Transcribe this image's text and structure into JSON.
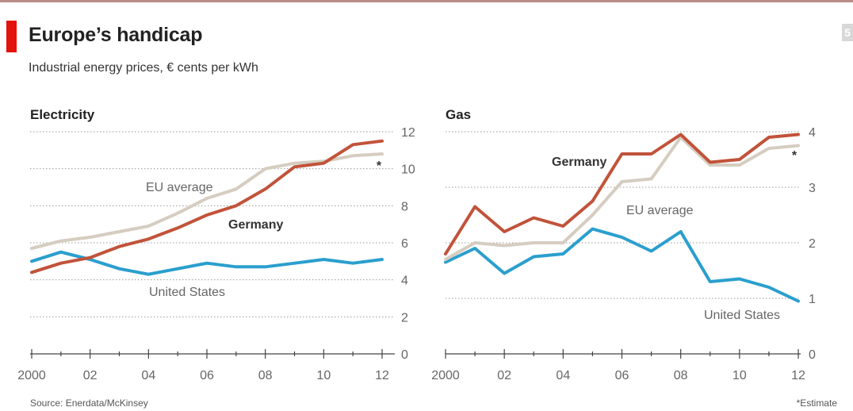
{
  "title": "Europe’s handicap",
  "subtitle": "Industrial energy prices, € cents per kWh",
  "page_number": "5",
  "source": "Source: Enerdata/McKinsey",
  "footnote": "*Estimate",
  "colors": {
    "accent_tag": "#e3120b",
    "germany": "#c1533a",
    "eu_average": "#d5cdc0",
    "united_states": "#2a9fce"
  },
  "chart_data": [
    {
      "type": "line",
      "title": "Electricity",
      "x": [
        2000,
        2001,
        2002,
        2003,
        2004,
        2005,
        2006,
        2007,
        2008,
        2009,
        2010,
        2011,
        2012
      ],
      "x_ticks": [
        2000,
        2002,
        2004,
        2006,
        2008,
        2010,
        2012
      ],
      "x_tick_labels": [
        "2000",
        "02",
        "04",
        "06",
        "08",
        "10",
        "12"
      ],
      "y_ticks": [
        0,
        2,
        4,
        6,
        8,
        10,
        12
      ],
      "y_tick_labels": [
        "0",
        "2",
        "4",
        "6",
        "8",
        "10",
        "12"
      ],
      "ylim": [
        0,
        12
      ],
      "estimate_marker": "*",
      "series": [
        {
          "name": "Germany",
          "values": [
            4.4,
            4.9,
            5.2,
            5.8,
            6.2,
            6.8,
            7.5,
            8.0,
            8.9,
            10.1,
            10.3,
            11.3,
            11.5
          ]
        },
        {
          "name": "EU average",
          "values": [
            5.7,
            6.1,
            6.3,
            6.6,
            6.9,
            7.6,
            8.4,
            8.9,
            10.0,
            10.3,
            10.4,
            10.7,
            10.8
          ]
        },
        {
          "name": "United States",
          "values": [
            5.0,
            5.5,
            5.1,
            4.6,
            4.3,
            4.6,
            4.9,
            4.7,
            4.7,
            4.9,
            5.1,
            4.9,
            5.1
          ]
        }
      ]
    },
    {
      "type": "line",
      "title": "Gas",
      "x": [
        2000,
        2001,
        2002,
        2003,
        2004,
        2005,
        2006,
        2007,
        2008,
        2009,
        2010,
        2011,
        2012
      ],
      "x_ticks": [
        2000,
        2002,
        2004,
        2006,
        2008,
        2010,
        2012
      ],
      "x_tick_labels": [
        "2000",
        "02",
        "04",
        "06",
        "08",
        "10",
        "12"
      ],
      "y_ticks": [
        0,
        1,
        2,
        3,
        4
      ],
      "y_tick_labels": [
        "0",
        "1",
        "2",
        "3",
        "4"
      ],
      "ylim": [
        0,
        4
      ],
      "estimate_marker": "*",
      "series": [
        {
          "name": "Germany",
          "values": [
            1.8,
            2.65,
            2.2,
            2.45,
            2.3,
            2.75,
            3.6,
            3.6,
            3.95,
            3.45,
            3.5,
            3.9,
            3.95
          ]
        },
        {
          "name": "EU average",
          "values": [
            1.7,
            2.0,
            1.95,
            2.0,
            2.0,
            2.5,
            3.1,
            3.15,
            3.9,
            3.4,
            3.4,
            3.7,
            3.75
          ]
        },
        {
          "name": "United States",
          "values": [
            1.65,
            1.9,
            1.45,
            1.75,
            1.8,
            2.25,
            2.1,
            1.85,
            2.2,
            1.3,
            1.35,
            1.2,
            0.95
          ]
        }
      ]
    }
  ]
}
